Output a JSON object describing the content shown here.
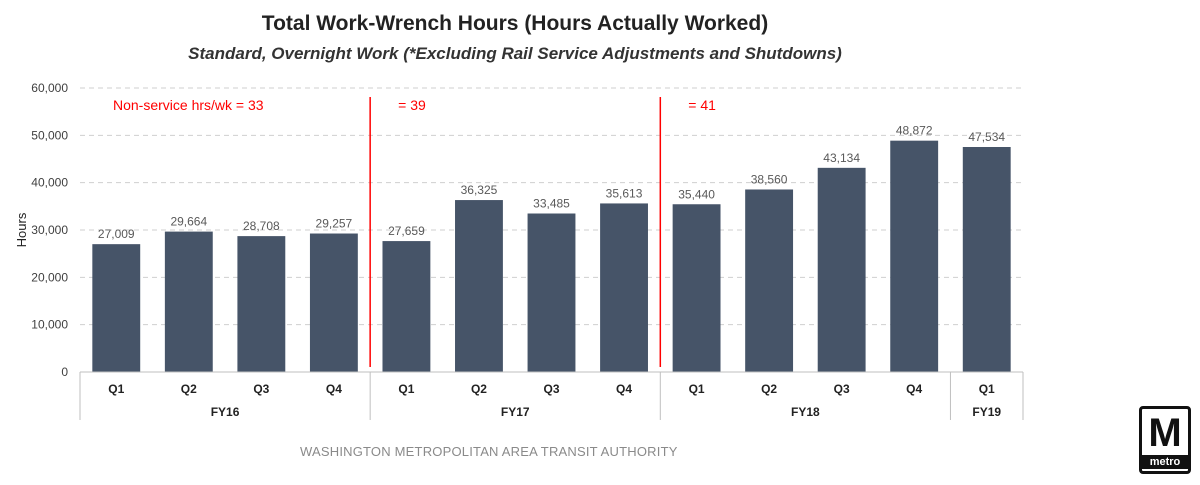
{
  "header": {
    "title": "Total Work-Wrench Hours (Hours Actually Worked)",
    "subtitle": "Standard, Overnight Work (*Excluding Rail Service Adjustments and Shutdowns)"
  },
  "footer": {
    "text": "WASHINGTON METROPOLITAN AREA TRANSIT AUTHORITY"
  },
  "logo": {
    "letter": "M",
    "word": "metro"
  },
  "chart_data": {
    "type": "bar",
    "title": "Total Work-Wrench Hours (Hours Actually Worked)",
    "subtitle": "Standard, Overnight Work (*Excluding Rail Service Adjustments and Shutdowns)",
    "xlabel": "",
    "ylabel": "Hours",
    "ylim": [
      0,
      60000
    ],
    "yticks": [
      0,
      10000,
      20000,
      30000,
      40000,
      50000,
      60000
    ],
    "ytick_labels": [
      "0",
      "10,000",
      "20,000",
      "30,000",
      "40,000",
      "50,000",
      "60,000"
    ],
    "grid": true,
    "bar_color": "#465468",
    "annotation_color": "#ff0000",
    "categories": [
      "Q1",
      "Q2",
      "Q3",
      "Q4",
      "Q1",
      "Q2",
      "Q3",
      "Q4",
      "Q1",
      "Q2",
      "Q3",
      "Q4",
      "Q1"
    ],
    "values": [
      27009,
      29664,
      28708,
      29257,
      27659,
      36325,
      33485,
      35613,
      35440,
      38560,
      43134,
      48872,
      47534
    ],
    "value_labels": [
      "27,009",
      "29,664",
      "28,708",
      "29,257",
      "27,659",
      "36,325",
      "33,485",
      "35,613",
      "35,440",
      "38,560",
      "43,134",
      "48,872",
      "47,534"
    ],
    "groups": [
      {
        "label": "FY16",
        "count": 4
      },
      {
        "label": "FY17",
        "count": 4
      },
      {
        "label": "FY18",
        "count": 4
      },
      {
        "label": "FY19",
        "count": 1
      }
    ],
    "annotations": [
      {
        "text": "Non-service hrs/wk = 33",
        "group_index": 0
      },
      {
        "text": "= 39",
        "group_index": 1
      },
      {
        "text": "= 41",
        "group_index": 2
      }
    ],
    "dividers_before_group": [
      1,
      2
    ]
  }
}
